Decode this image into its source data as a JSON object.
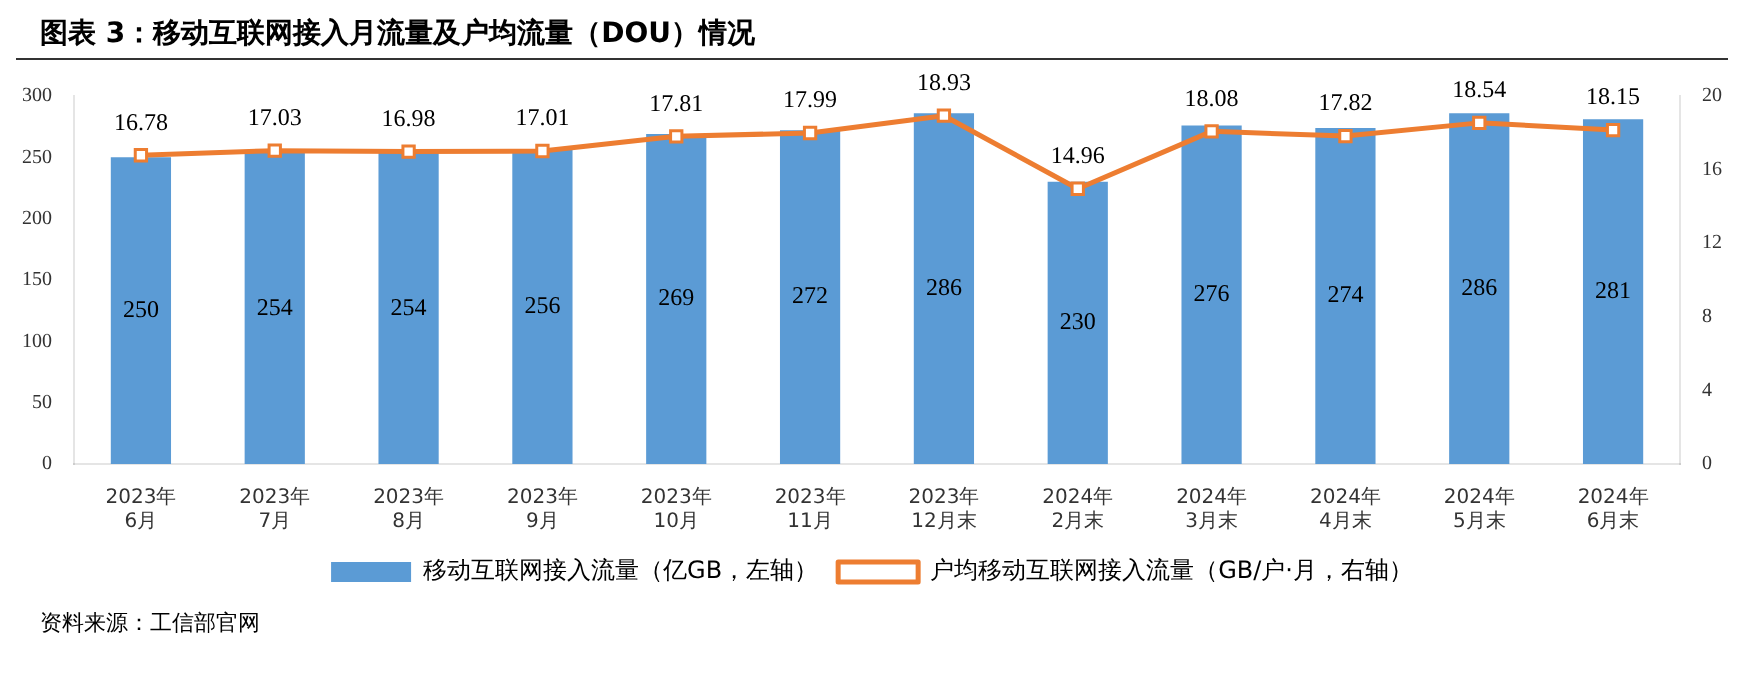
{
  "chart_data": {
    "type": "bar",
    "title": "图表 3：移动互联网接入月流量及户均流量（DOU）情况",
    "categories": [
      "2023年\n6月",
      "2023年\n7月",
      "2023年\n8月",
      "2023年\n9月",
      "2023年\n10月",
      "2023年\n11月",
      "2023年\n12月末",
      "2024年\n2月末",
      "2024年\n3月末",
      "2024年\n4月末",
      "2024年\n5月末",
      "2024年\n6月末"
    ],
    "series": [
      {
        "name": "移动互联网接入流量（亿GB，左轴）",
        "color": "#5b9bd5",
        "values": [
          250,
          254,
          254,
          256,
          269,
          272,
          286,
          230,
          276,
          274,
          286,
          281
        ]
      },
      {
        "name": "户均移动互联网接入流量（GB/户·月，右轴）",
        "type": "line",
        "axis": "y2",
        "color": "#ed7d31",
        "marker": "square",
        "values": [
          16.78,
          17.03,
          16.98,
          17.01,
          17.81,
          17.99,
          18.93,
          14.96,
          18.08,
          17.82,
          18.54,
          18.15
        ]
      }
    ],
    "ylim": [
      0,
      300
    ],
    "yticks": [
      0,
      50,
      100,
      150,
      200,
      250,
      300
    ],
    "y2lim": [
      0,
      20
    ],
    "y2ticks": [
      0,
      4,
      8,
      12,
      16,
      20
    ],
    "data_labels": true,
    "legend": "bottom",
    "grid": false,
    "annotations": [
      "资料来源：工信部官网"
    ]
  }
}
